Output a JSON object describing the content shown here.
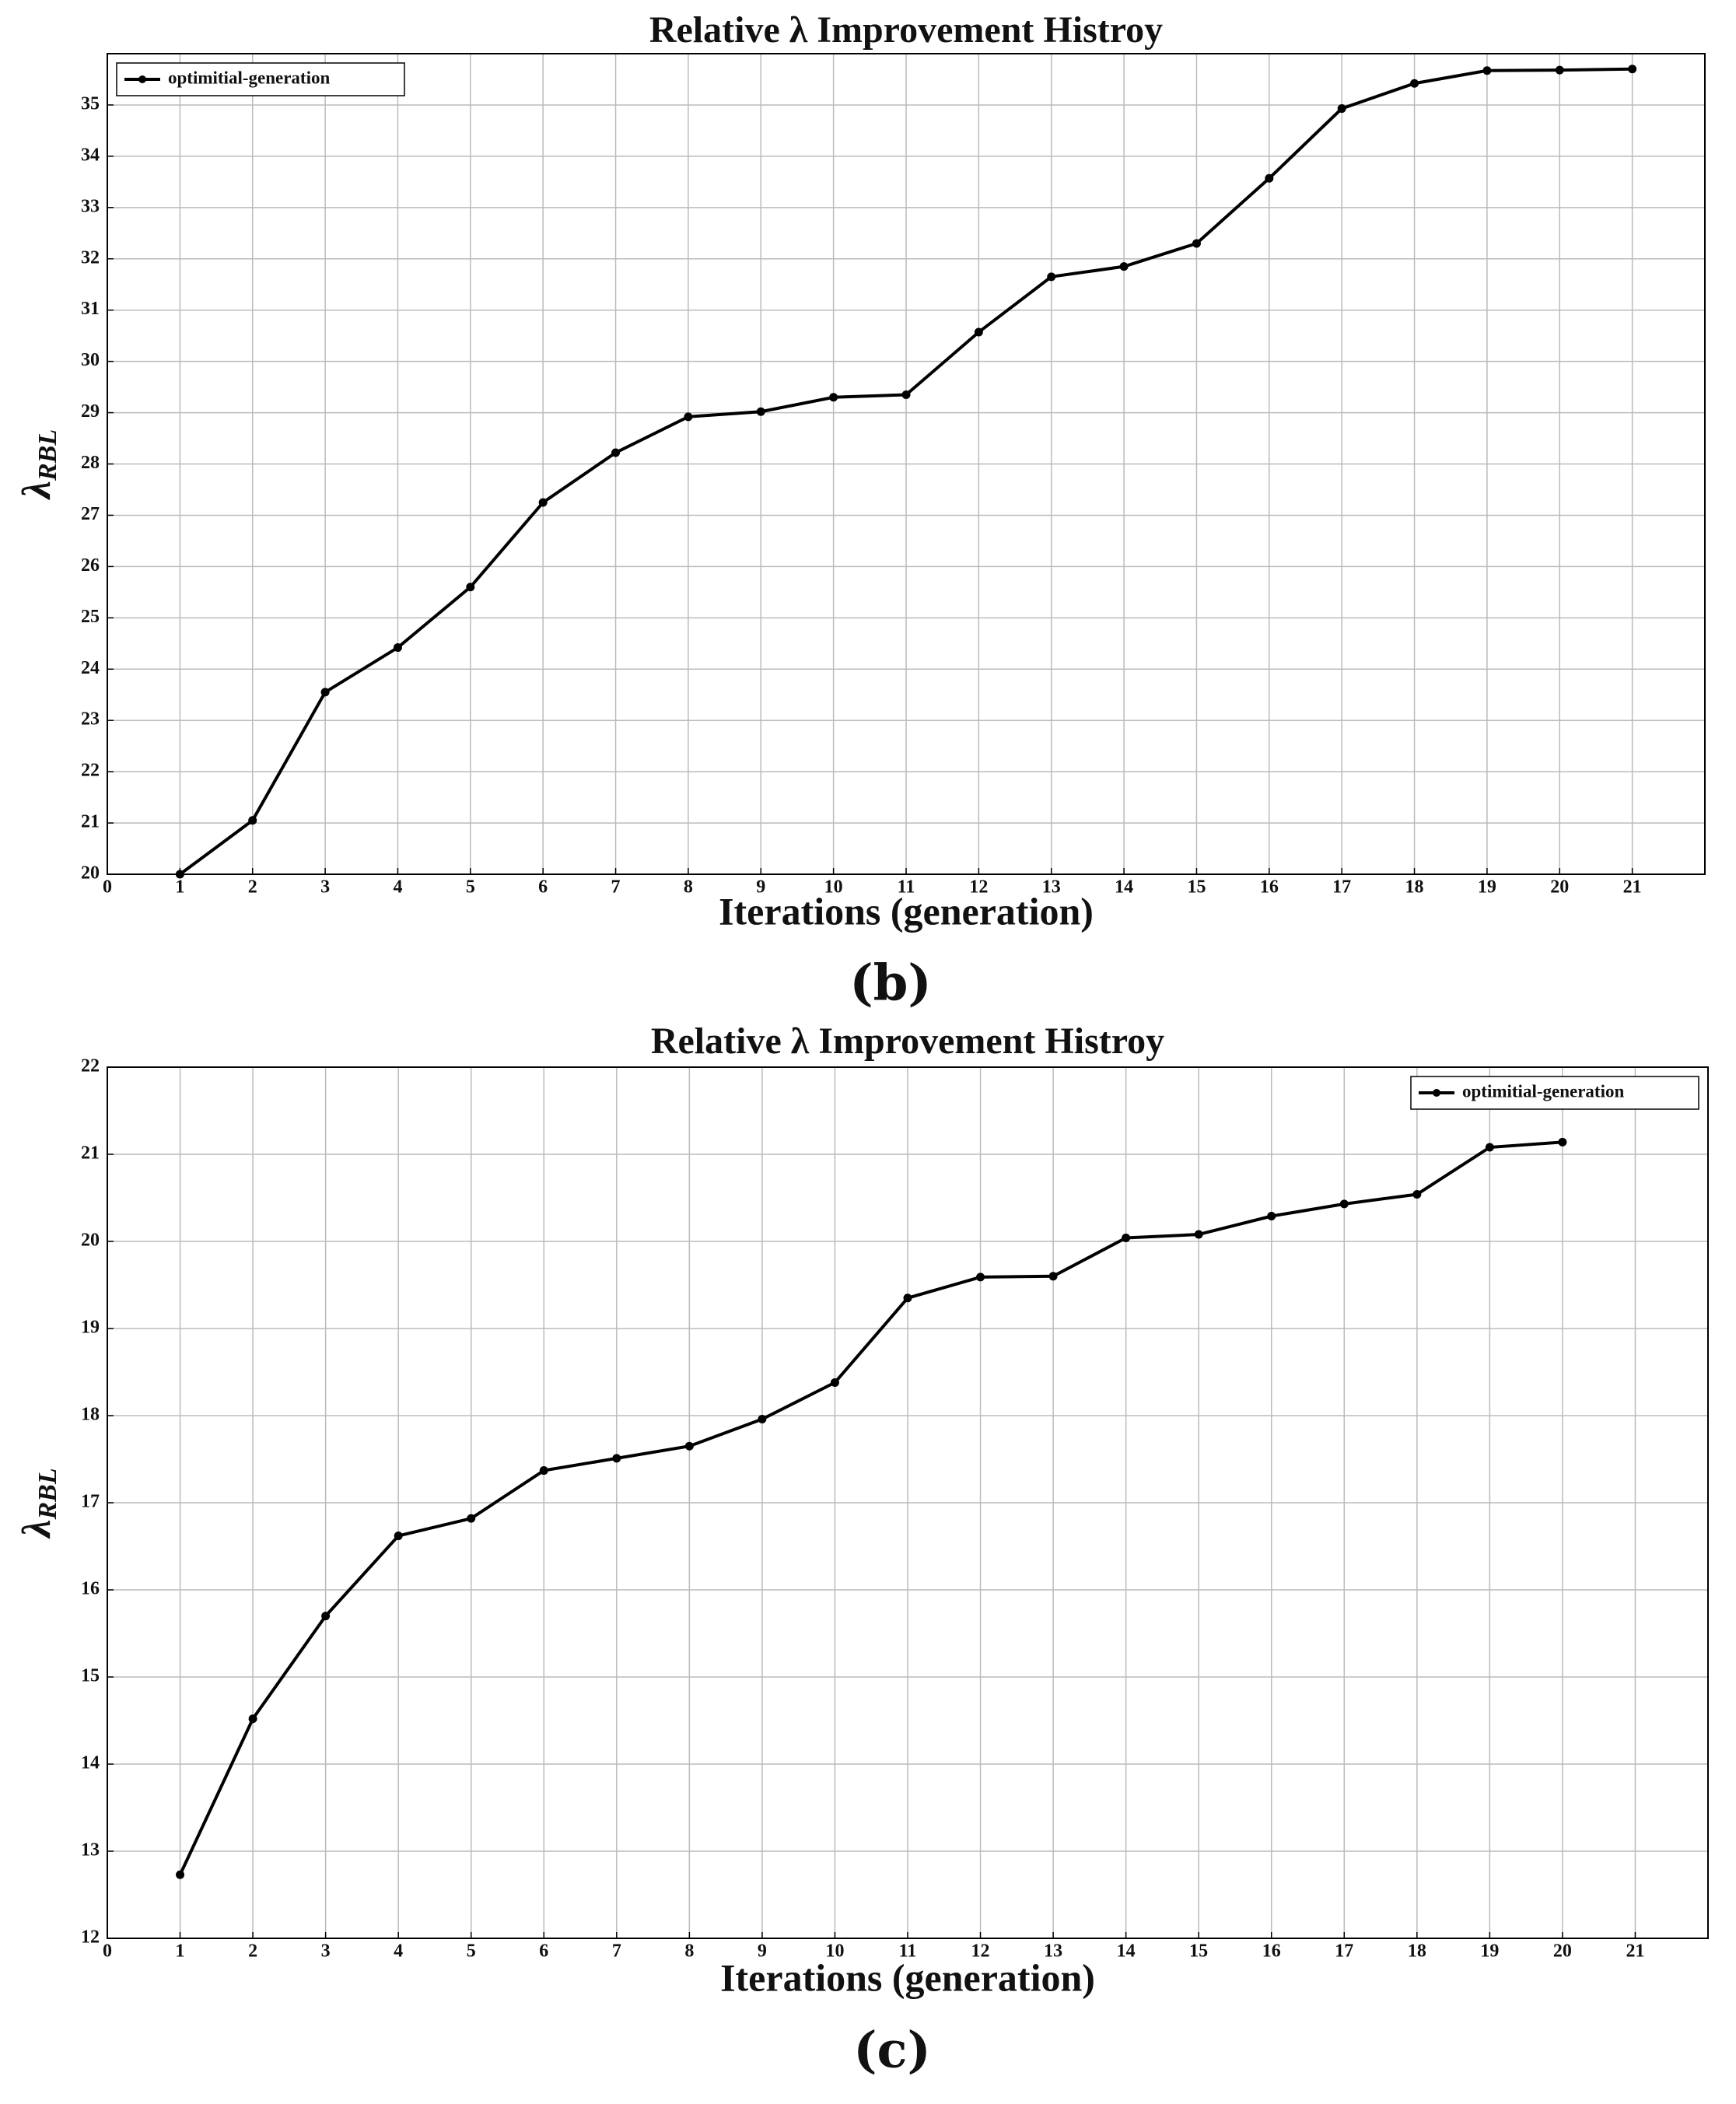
{
  "chart_data": [
    {
      "type": "line",
      "title": "Relative λ Improvement Histroy",
      "xlabel": "Iterations (generation)",
      "ylabel": "λ",
      "ylabel_subscript": "RBL",
      "caption": "(b)",
      "x": [
        1,
        2,
        3,
        4,
        5,
        6,
        7,
        8,
        9,
        10,
        11,
        12,
        13,
        14,
        15,
        16,
        17,
        18,
        19,
        20,
        21
      ],
      "series": [
        {
          "name": "optimitial-generation",
          "color": "#000000",
          "values": [
            20.0,
            21.05,
            23.55,
            24.42,
            25.6,
            27.25,
            28.22,
            28.92,
            29.02,
            29.3,
            29.35,
            30.57,
            31.65,
            31.85,
            32.3,
            33.57,
            34.93,
            35.42,
            35.67,
            35.68,
            35.7
          ]
        }
      ],
      "xlim": [
        0,
        22
      ],
      "xticks": [
        0,
        1,
        2,
        3,
        4,
        5,
        6,
        7,
        8,
        9,
        10,
        11,
        12,
        13,
        14,
        15,
        16,
        17,
        18,
        19,
        20,
        21
      ],
      "ylim": [
        20,
        36
      ],
      "yticks": [
        20,
        21,
        22,
        23,
        24,
        25,
        26,
        27,
        28,
        29,
        30,
        31,
        32,
        33,
        34,
        35
      ],
      "grid": true,
      "legend": "upper-left"
    },
    {
      "type": "line",
      "title": "Relative λ Improvement Histroy",
      "xlabel": "Iterations (generation)",
      "ylabel": "λ",
      "ylabel_subscript": "RBL",
      "caption": "(c)",
      "x": [
        1,
        2,
        3,
        4,
        5,
        6,
        7,
        8,
        9,
        10,
        11,
        12,
        13,
        14,
        15,
        16,
        17,
        18,
        19,
        20
      ],
      "series": [
        {
          "name": "optimitial-generation",
          "color": "#000000",
          "values": [
            12.73,
            14.52,
            15.7,
            16.62,
            16.82,
            17.37,
            17.51,
            17.65,
            17.96,
            18.38,
            19.35,
            19.59,
            19.6,
            20.04,
            20.08,
            20.29,
            20.43,
            20.54,
            21.08,
            21.14
          ]
        }
      ],
      "xlim": [
        0,
        22
      ],
      "xticks": [
        0,
        1,
        2,
        3,
        4,
        5,
        6,
        7,
        8,
        9,
        10,
        11,
        12,
        13,
        14,
        15,
        16,
        17,
        18,
        19,
        20,
        21
      ],
      "ylim": [
        12,
        22
      ],
      "yticks": [
        12,
        13,
        14,
        15,
        16,
        17,
        18,
        19,
        20,
        21,
        22
      ],
      "grid": true,
      "legend": "upper-right"
    }
  ]
}
